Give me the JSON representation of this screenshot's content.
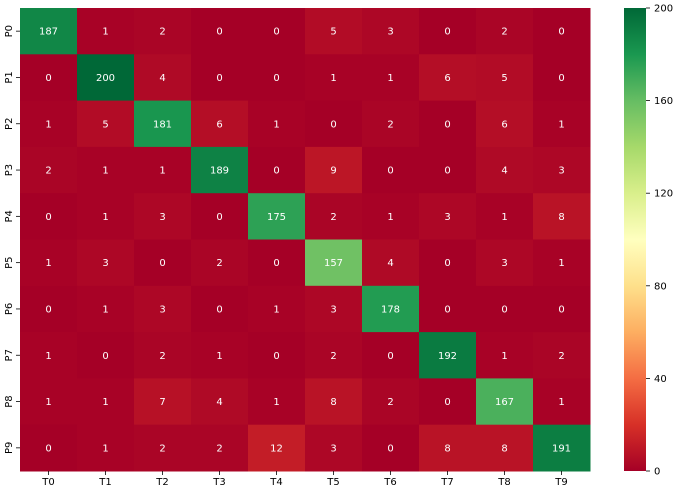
{
  "chart_data": {
    "type": "heatmap",
    "title": "",
    "xlabel": "",
    "ylabel": "",
    "x_categories": [
      "T0",
      "T1",
      "T2",
      "T3",
      "T4",
      "T5",
      "T6",
      "T7",
      "T8",
      "T9"
    ],
    "y_categories": [
      "P0",
      "P1",
      "P2",
      "P3",
      "P4",
      "P5",
      "P6",
      "P7",
      "P8",
      "P9"
    ],
    "values": [
      [
        187,
        1,
        2,
        0,
        0,
        5,
        3,
        0,
        2,
        0
      ],
      [
        0,
        200,
        4,
        0,
        0,
        1,
        1,
        6,
        5,
        0
      ],
      [
        1,
        5,
        181,
        6,
        1,
        0,
        2,
        0,
        6,
        1
      ],
      [
        2,
        1,
        1,
        189,
        0,
        9,
        0,
        0,
        4,
        3
      ],
      [
        0,
        1,
        3,
        0,
        175,
        2,
        1,
        3,
        1,
        8
      ],
      [
        1,
        3,
        0,
        2,
        0,
        157,
        4,
        0,
        3,
        1
      ],
      [
        0,
        1,
        3,
        0,
        1,
        3,
        178,
        0,
        0,
        0
      ],
      [
        1,
        0,
        2,
        1,
        0,
        2,
        0,
        192,
        1,
        2
      ],
      [
        1,
        1,
        7,
        4,
        1,
        8,
        2,
        0,
        167,
        1
      ],
      [
        0,
        1,
        2,
        2,
        12,
        3,
        0,
        8,
        8,
        191
      ]
    ],
    "colorscale": "RdYlGn",
    "colorscale_stops": [
      "#a50026",
      "#d73027",
      "#f46d43",
      "#fdae61",
      "#fee08b",
      "#ffffbf",
      "#d9ef8b",
      "#a6d96a",
      "#66bd63",
      "#1a9850",
      "#006837"
    ],
    "vmin": 0,
    "vmax": 200,
    "colorbar_ticks": [
      0,
      40,
      80,
      120,
      160,
      200
    ],
    "annotations": true,
    "grid": false,
    "legend": "colorbar-right"
  }
}
